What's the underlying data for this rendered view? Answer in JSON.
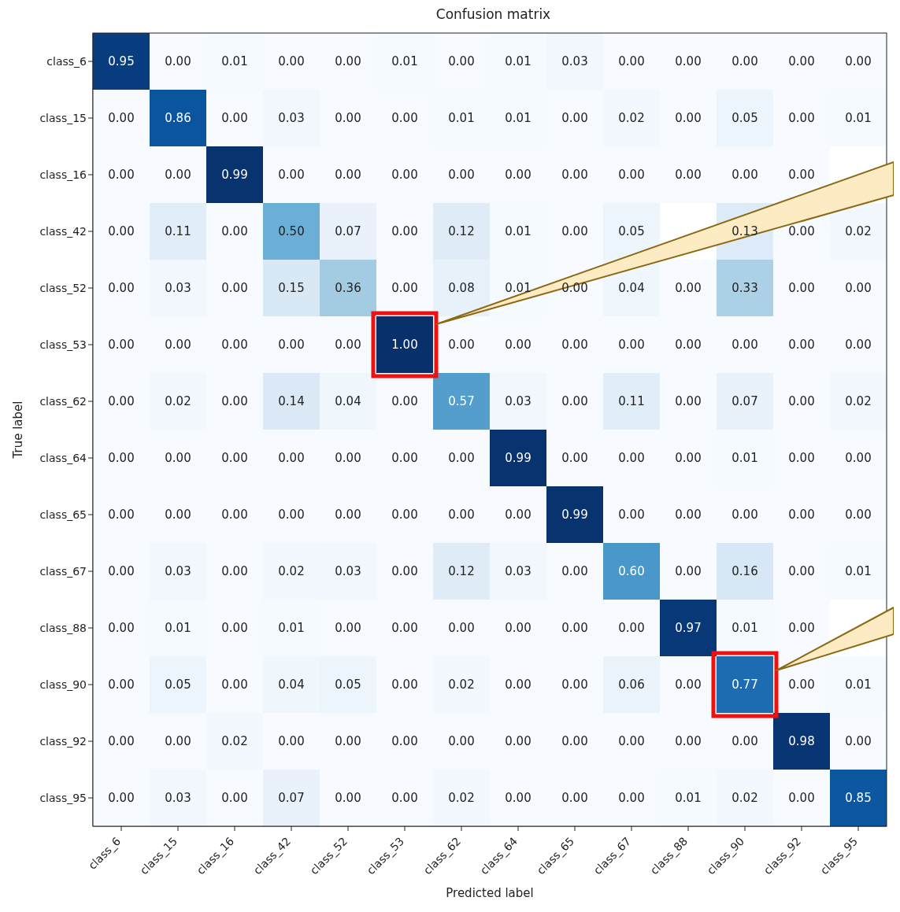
{
  "chart_data": {
    "type": "heatmap",
    "title": "Confusion matrix",
    "xlabel": "Predicted label",
    "ylabel": "True label",
    "categories": [
      "class_6",
      "class_15",
      "class_16",
      "class_42",
      "class_52",
      "class_53",
      "class_62",
      "class_64",
      "class_65",
      "class_67",
      "class_88",
      "class_90",
      "class_92",
      "class_95"
    ],
    "y_categories": [
      "class_6",
      "class_15",
      "class_16",
      "class_42",
      "class_52",
      "class_53",
      "class_62",
      "class_64",
      "class_65",
      "class_67",
      "class_88",
      "class_90",
      "class_92",
      "class_95"
    ],
    "cells": [
      [
        0.95,
        0,
        0.01,
        0,
        0,
        0.01,
        0,
        0.01,
        0.03,
        0,
        0,
        0,
        0,
        0
      ],
      [
        0,
        0.86,
        0,
        0.03,
        0,
        0,
        0.01,
        0.01,
        0,
        0.02,
        0,
        0.05,
        0,
        0.01
      ],
      [
        0,
        0,
        0.99,
        0,
        0,
        0,
        0,
        0,
        0,
        0,
        0,
        0,
        0,
        null
      ],
      [
        0,
        0.11,
        0,
        0.5,
        0.07,
        0,
        0.12,
        0.01,
        0,
        0.05,
        null,
        0.13,
        0,
        0.02
      ],
      [
        0,
        0.03,
        0,
        0.15,
        0.36,
        0,
        0.08,
        0.01,
        0,
        0.04,
        0,
        0.33,
        0,
        0
      ],
      [
        0,
        0,
        0,
        0,
        0,
        1.0,
        0,
        0,
        0,
        0,
        0,
        0,
        0,
        0
      ],
      [
        0,
        0.02,
        0,
        0.14,
        0.04,
        0,
        0.57,
        0.03,
        0,
        0.11,
        0,
        0.07,
        0,
        0.02
      ],
      [
        0,
        0,
        0,
        0,
        0,
        0,
        0,
        0.99,
        0,
        0,
        0,
        0.01,
        0,
        0
      ],
      [
        0,
        0,
        0,
        0,
        0,
        0,
        0,
        0,
        0.99,
        0,
        0,
        0,
        0,
        0
      ],
      [
        0,
        0.03,
        0,
        0.02,
        0.03,
        0,
        0.12,
        0.03,
        0,
        0.6,
        0,
        0.16,
        0,
        0.01
      ],
      [
        0,
        0.01,
        0,
        0.01,
        0,
        0,
        0,
        0,
        0,
        0,
        0.97,
        0.01,
        0,
        null
      ],
      [
        0,
        0.05,
        0,
        0.04,
        0.05,
        0,
        0.02,
        0,
        0,
        0.06,
        0,
        0.77,
        0,
        0.01
      ],
      [
        0,
        0,
        0.02,
        0,
        0,
        0,
        0,
        0,
        0,
        0,
        0,
        0,
        0.98,
        0
      ],
      [
        0,
        0.03,
        0,
        0.07,
        0,
        0,
        0.02,
        0,
        0,
        0,
        0.01,
        0.02,
        0,
        0.85
      ]
    ],
    "cell_labels": [
      [
        "0.95",
        "0.00",
        "0.01",
        "0.00",
        "0.00",
        "0.01",
        "0.00",
        "0.01",
        "0.03",
        "0.00",
        "0.00",
        "0.00",
        "0.00",
        "0.00"
      ],
      [
        "0.00",
        "0.86",
        "0.00",
        "0.03",
        "0.00",
        "0.00",
        "0.01",
        "0.01",
        "0.00",
        "0.02",
        "0.00",
        "0.05",
        "0.00",
        "0.01"
      ],
      [
        "0.00",
        "0.00",
        "0.99",
        "0.00",
        "0.00",
        "0.00",
        "0.00",
        "0.00",
        "0.00",
        "0.00",
        "0.00",
        "0.00",
        "0.00",
        null
      ],
      [
        "0.00",
        "0.11",
        "0.00",
        "0.50",
        "0.07",
        "0.00",
        "0.12",
        "0.01",
        "0.00",
        "0.05",
        null,
        "0.13",
        "0.00",
        "0.02"
      ],
      [
        "0.00",
        "0.03",
        "0.00",
        "0.15",
        "0.36",
        "0.00",
        "0.08",
        "0.01",
        "0.00",
        "0.04",
        "0.00",
        "0.33",
        "0.00",
        "0.00"
      ],
      [
        "0.00",
        "0.00",
        "0.00",
        "0.00",
        "0.00",
        "1.00",
        "0.00",
        "0.00",
        "0.00",
        "0.00",
        "0.00",
        "0.00",
        "0.00",
        "0.00"
      ],
      [
        "0.00",
        "0.02",
        "0.00",
        "0.14",
        "0.04",
        "0.00",
        "0.57",
        "0.03",
        "0.00",
        "0.11",
        "0.00",
        "0.07",
        "0.00",
        "0.02"
      ],
      [
        "0.00",
        "0.00",
        "0.00",
        "0.00",
        "0.00",
        "0.00",
        "0.00",
        "0.99",
        "0.00",
        "0.00",
        "0.00",
        "0.01",
        "0.00",
        "0.00"
      ],
      [
        "0.00",
        "0.00",
        "0.00",
        "0.00",
        "0.00",
        "0.00",
        "0.00",
        "0.00",
        "0.99",
        "0.00",
        "0.00",
        "0.00",
        "0.00",
        "0.00"
      ],
      [
        "0.00",
        "0.03",
        "0.00",
        "0.02",
        "0.03",
        "0.00",
        "0.12",
        "0.03",
        "0.00",
        "0.60",
        "0.00",
        "0.16",
        "0.00",
        "0.01"
      ],
      [
        "0.00",
        "0.01",
        "0.00",
        "0.01",
        "0.00",
        "0.00",
        "0.00",
        "0.00",
        "0.00",
        "0.00",
        "0.97",
        "0.01",
        "0.00",
        null
      ],
      [
        "0.00",
        "0.05",
        "0.00",
        "0.04",
        "0.05",
        "0.00",
        "0.02",
        "0.00",
        "0.00",
        "0.06",
        "0.00",
        "0.77",
        "0.00",
        "0.01"
      ],
      [
        "0.00",
        "0.00",
        "0.02",
        "0.00",
        "0.00",
        "0.00",
        "0.00",
        "0.00",
        "0.00",
        "0.00",
        "0.00",
        "0.00",
        "0.98",
        "0.00"
      ],
      [
        "0.00",
        "0.03",
        "0.00",
        "0.07",
        "0.00",
        "0.00",
        "0.02",
        "0.00",
        "0.00",
        "0.00",
        "0.01",
        "0.02",
        "0.00",
        "0.85"
      ]
    ]
  }
}
